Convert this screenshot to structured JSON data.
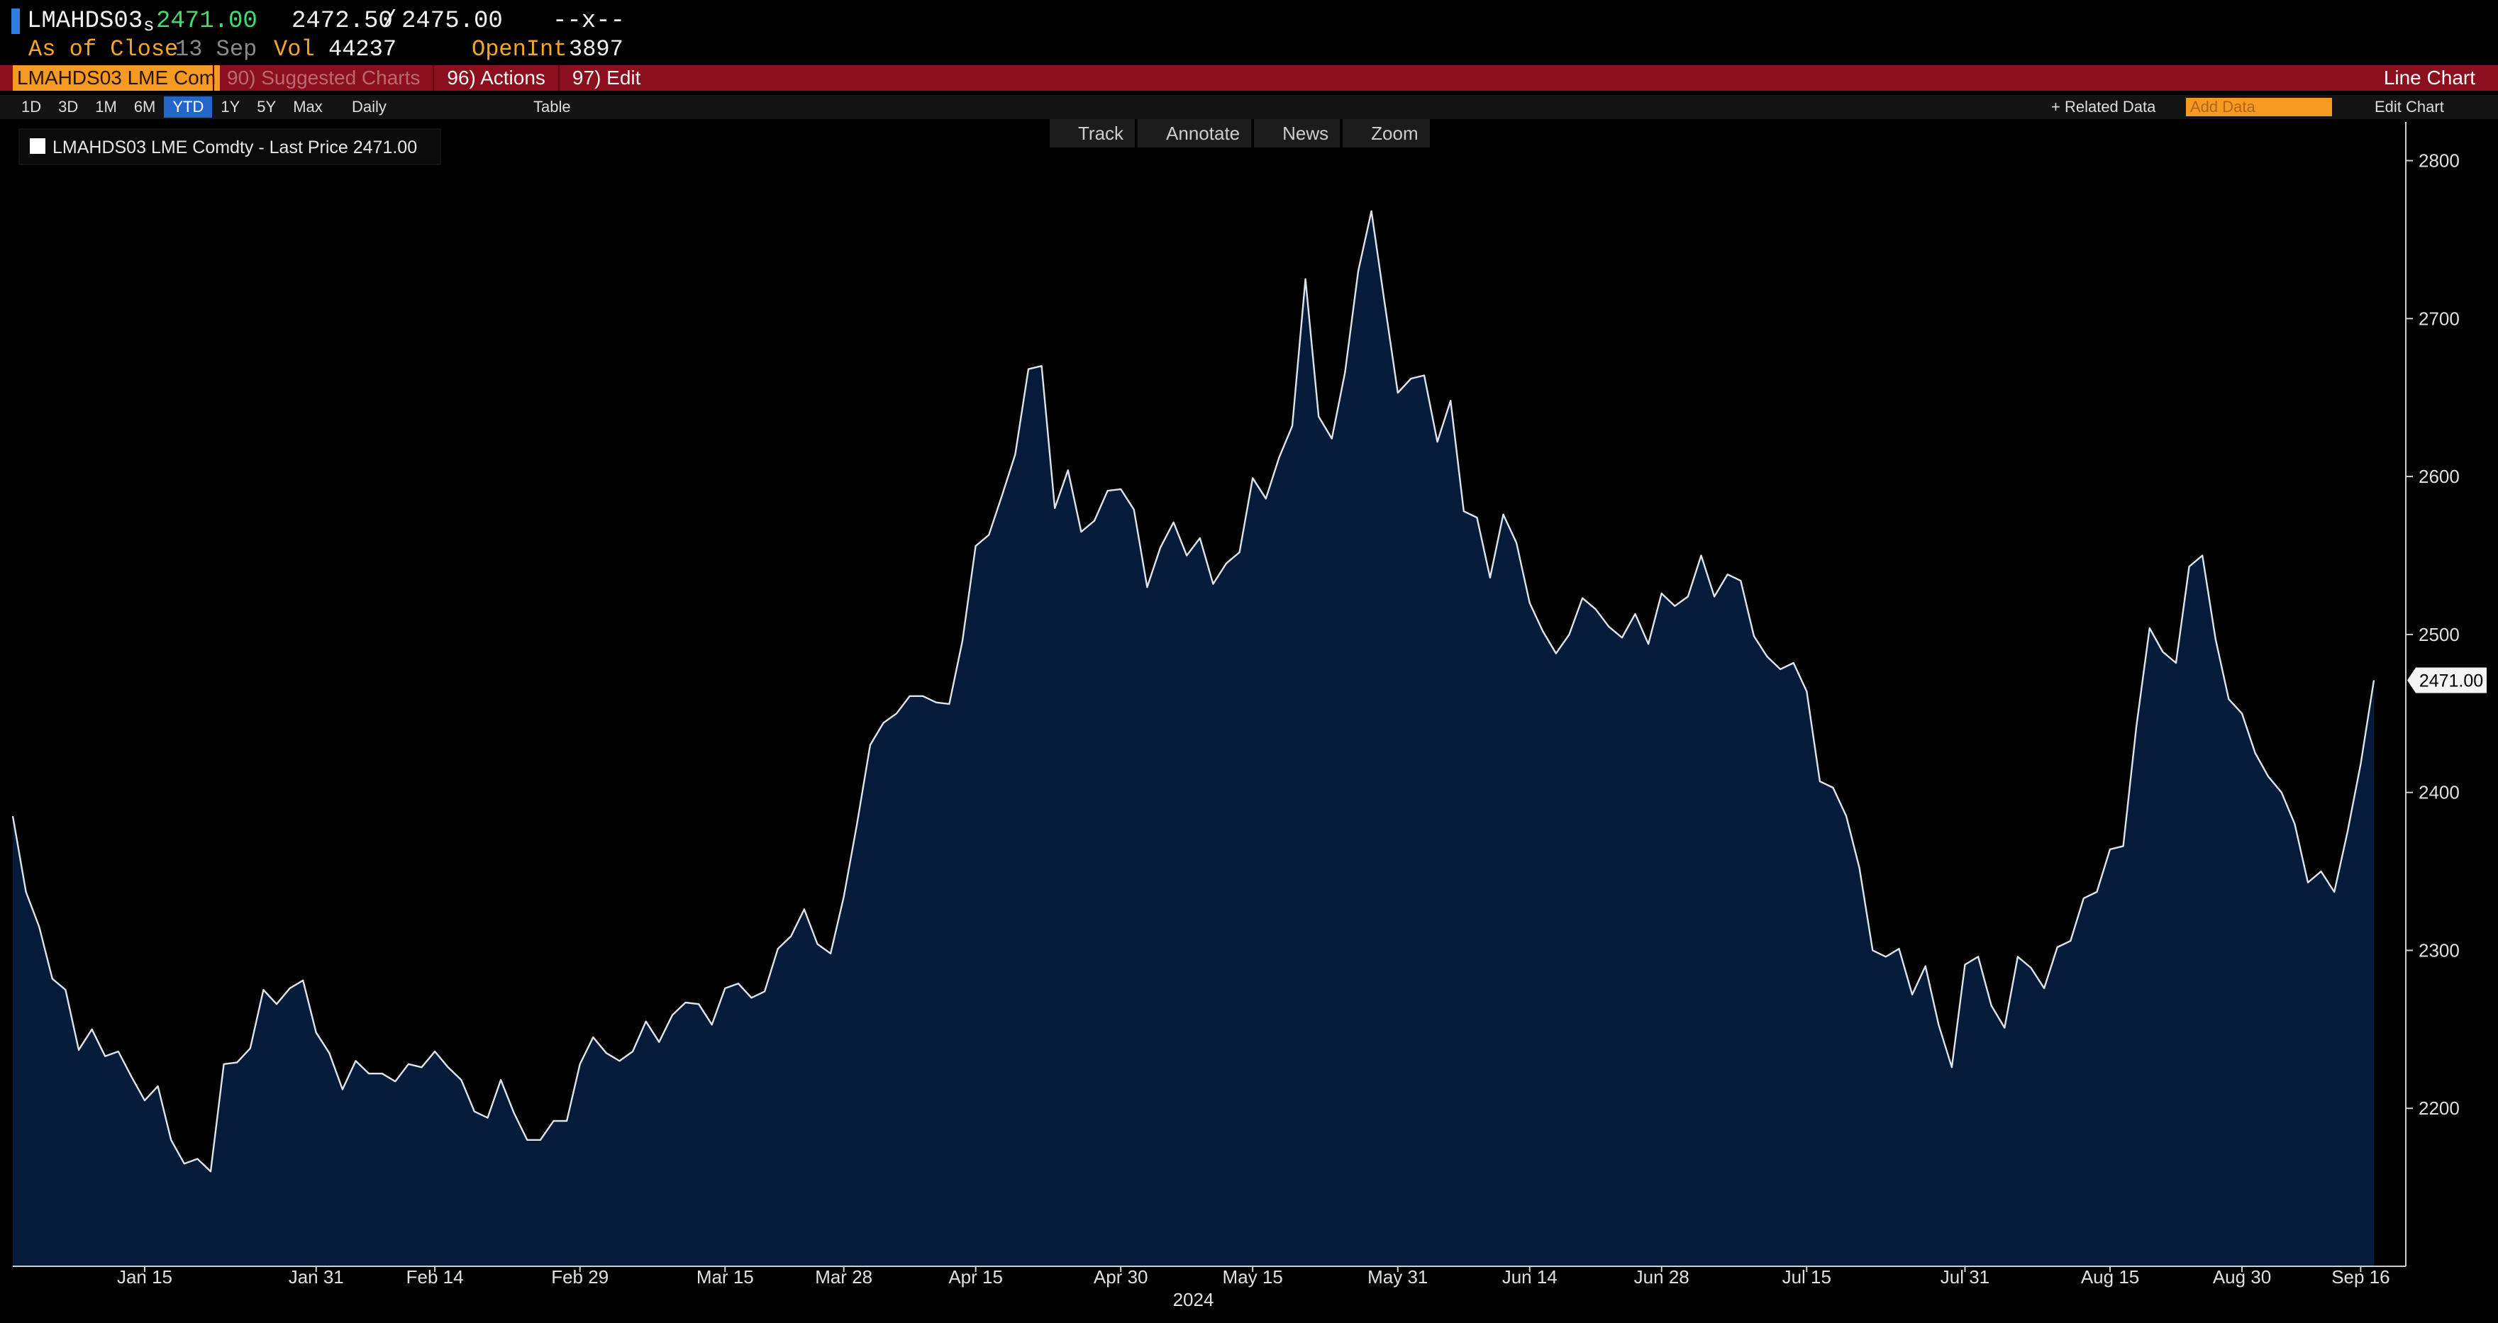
{
  "header": {
    "ticker": "LMAHDS03",
    "price_flag": "s",
    "last": "2471.00",
    "bid": "2472.50",
    "separator": "/",
    "ask": "2475.00",
    "change": "--x--",
    "as_of_label": "As of Close",
    "date": "13 Sep",
    "vol_label": "Vol",
    "vol": "44237",
    "oi_label": "OpenInt",
    "oi": "3897"
  },
  "menu": {
    "security": "LMAHDS03 LME Com",
    "items": [
      "90) Suggested Charts",
      "96) Actions",
      "97) Edit"
    ],
    "chart_kind": "Line Chart"
  },
  "toolbar": {
    "ranges": [
      "1D",
      "3D",
      "1M",
      "6M",
      "YTD",
      "1Y",
      "5Y",
      "Max"
    ],
    "selected_range": "YTD",
    "frequency": "Daily",
    "table": "Table",
    "related": "+ Related Data",
    "add_data": "Add Data",
    "edit_chart": "Edit Chart",
    "tools": [
      "Track",
      "Annotate",
      "News",
      "Zoom"
    ]
  },
  "chart_data": {
    "type": "area",
    "categories": [
      null,
      null,
      null,
      null,
      null,
      null,
      null,
      null,
      null,
      null,
      "Jan 15",
      null,
      null,
      null,
      null,
      null,
      null,
      null,
      null,
      null,
      null,
      null,
      null,
      "Jan 31",
      null,
      null,
      null,
      null,
      null,
      null,
      null,
      null,
      "Feb 14",
      null,
      null,
      null,
      null,
      null,
      null,
      null,
      null,
      null,
      null,
      "Feb 29",
      null,
      null,
      null,
      null,
      null,
      null,
      null,
      null,
      null,
      null,
      "Mar 15",
      null,
      null,
      null,
      null,
      null,
      null,
      null,
      null,
      "Mar 28",
      null,
      null,
      null,
      null,
      null,
      null,
      null,
      null,
      null,
      "Apr 15",
      null,
      null,
      null,
      null,
      null,
      null,
      null,
      null,
      null,
      null,
      "Apr 30",
      null,
      null,
      null,
      null,
      null,
      null,
      null,
      null,
      null,
      "May 15",
      null,
      null,
      null,
      null,
      null,
      null,
      null,
      null,
      null,
      null,
      "May 31",
      null,
      null,
      null,
      null,
      null,
      null,
      null,
      null,
      null,
      "Jun 14",
      null,
      null,
      null,
      null,
      null,
      null,
      null,
      null,
      null,
      "Jun 28",
      null,
      null,
      null,
      null,
      null,
      null,
      null,
      null,
      null,
      null,
      "Jul 15",
      null,
      null,
      null,
      null,
      null,
      null,
      null,
      null,
      null,
      null,
      null,
      "Jul 31",
      null,
      null,
      null,
      null,
      null,
      null,
      null,
      null,
      null,
      null,
      "Aug 15",
      null,
      null,
      null,
      null,
      null,
      null,
      null,
      null,
      null,
      "Aug 30",
      null,
      null,
      null,
      null,
      null,
      null,
      null,
      null,
      "Sep 16",
      null
    ],
    "xlabel": "2024",
    "series": [
      {
        "name": "LMAHDS03 LME Comdty - Last Price 2471.00",
        "color": "#dfe3ea",
        "fill": "#041c3a",
        "values": [
          2385,
          2337,
          2315,
          2282,
          2275,
          2237,
          2250,
          2233,
          2236,
          2220,
          2205,
          2214,
          2180,
          2165,
          2168,
          2160,
          2228,
          2229,
          2238,
          2275,
          2266,
          2276,
          2281,
          2248,
          2235,
          2212,
          2230,
          2222,
          2222,
          2217,
          2228,
          2226,
          2236,
          2226,
          2218,
          2198,
          2194,
          2218,
          2197,
          2180,
          2180,
          2192,
          2192,
          2228,
          2245,
          2235,
          2230,
          2236,
          2255,
          2242,
          2259,
          2267,
          2266,
          2253,
          2276,
          2279,
          2270,
          2274,
          2301,
          2309,
          2326,
          2304,
          2298,
          2334,
          2380,
          2430,
          2444,
          2450,
          2461,
          2461,
          2457,
          2456,
          2496,
          2556,
          2563,
          2588,
          2614,
          2668,
          2670,
          2580,
          2604,
          2565,
          2572,
          2591,
          2592,
          2579,
          2530,
          2555,
          2571,
          2550,
          2561,
          2532,
          2545,
          2552,
          2599,
          2586,
          2612,
          2632,
          2725,
          2638,
          2624,
          2666,
          2730,
          2768,
          2710,
          2653,
          2662,
          2664,
          2622,
          2648,
          2578,
          2574,
          2536,
          2576,
          2558,
          2520,
          2502,
          2488,
          2500,
          2523,
          2516,
          2505,
          2498,
          2513,
          2494,
          2526,
          2518,
          2524,
          2550,
          2524,
          2538,
          2534,
          2499,
          2486,
          2478,
          2482,
          2464,
          2407,
          2403,
          2385,
          2352,
          2300,
          2296,
          2301,
          2272,
          2290,
          2253,
          2226,
          2291,
          2296,
          2265,
          2251,
          2296,
          2289,
          2276,
          2302,
          2306,
          2333,
          2337,
          2364,
          2366,
          2442,
          2504,
          2489,
          2482,
          2543,
          2550,
          2497,
          2459,
          2450,
          2425,
          2410,
          2400,
          2380,
          2343,
          2350,
          2337,
          2375,
          2418,
          2471
        ]
      }
    ],
    "last_label": {
      "value": 2471,
      "label": "2471.00"
    },
    "ylim": [
      2100,
      2820
    ],
    "yticks": [
      2200,
      2300,
      2400,
      2500,
      2600,
      2700,
      2800
    ],
    "y_axis_side": "right",
    "grid": false
  }
}
